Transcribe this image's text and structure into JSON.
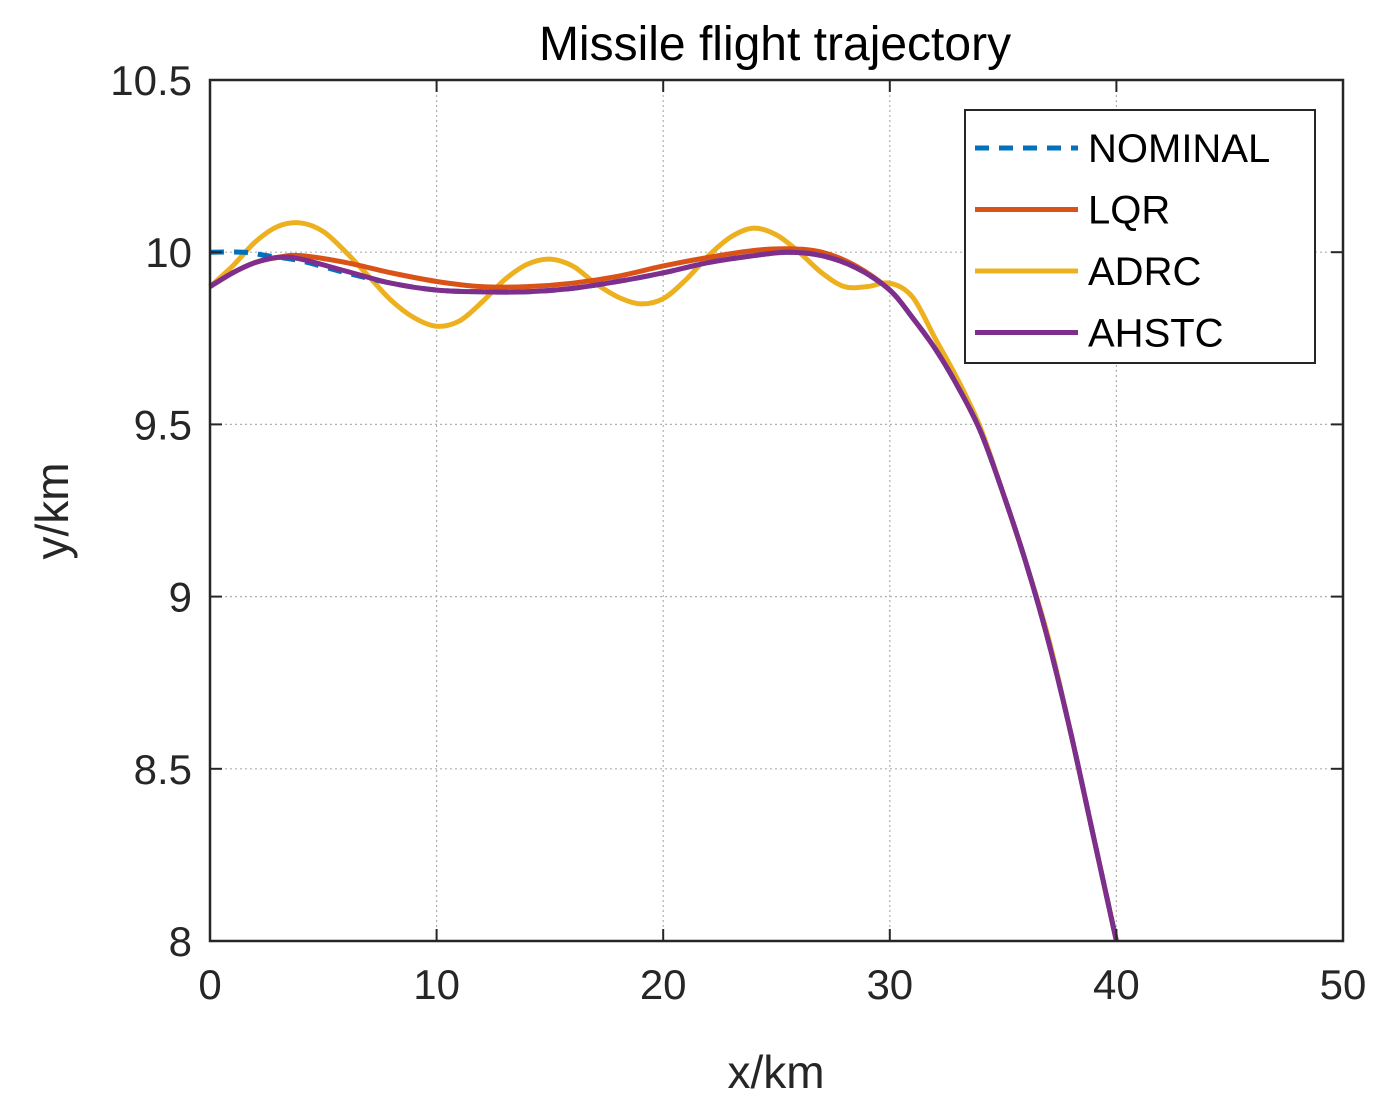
{
  "chart_data": {
    "type": "line",
    "title": "Missile flight trajectory",
    "xlabel": "x/km",
    "ylabel": "y/km",
    "xlim": [
      0,
      50
    ],
    "ylim": [
      8,
      10.5
    ],
    "xticks": [
      0,
      10,
      20,
      30,
      40,
      50
    ],
    "yticks": [
      8,
      8.5,
      9,
      9.5,
      10,
      10.5
    ],
    "xtick_labels": [
      "0",
      "10",
      "20",
      "30",
      "40",
      "50"
    ],
    "ytick_labels": [
      "8",
      "8.5",
      "9",
      "9.5",
      "10",
      "10.5"
    ],
    "grid": true,
    "legend_position": "top-right",
    "series": [
      {
        "name": "NOMINAL",
        "color": "#0072BD",
        "style": "dashed",
        "x": [
          0,
          1.5,
          2.5,
          4,
          6,
          8,
          10,
          12,
          14,
          16,
          18,
          20,
          22,
          24,
          25.5,
          27,
          28.5,
          30,
          31,
          32,
          33,
          34,
          35,
          36,
          37,
          38,
          39,
          40
        ],
        "y": [
          10.0,
          10.0,
          9.99,
          9.975,
          9.94,
          9.91,
          9.89,
          9.885,
          9.885,
          9.895,
          9.915,
          9.94,
          9.97,
          9.99,
          10.0,
          9.99,
          9.955,
          9.89,
          9.81,
          9.72,
          9.61,
          9.48,
          9.3,
          9.1,
          8.87,
          8.6,
          8.3,
          8.0
        ]
      },
      {
        "name": "LQR",
        "color": "#D95319",
        "style": "solid",
        "x": [
          0,
          1,
          2,
          3,
          4,
          6,
          8,
          10,
          12,
          14,
          16,
          18,
          20,
          22,
          24,
          25.5,
          27,
          28.5,
          30,
          31,
          32,
          33,
          34,
          35,
          36,
          37,
          38,
          39,
          40
        ],
        "y": [
          9.9,
          9.94,
          9.97,
          9.985,
          9.99,
          9.97,
          9.94,
          9.915,
          9.9,
          9.9,
          9.91,
          9.93,
          9.96,
          9.985,
          10.005,
          10.01,
          10.0,
          9.96,
          9.89,
          9.81,
          9.72,
          9.61,
          9.48,
          9.3,
          9.1,
          8.87,
          8.6,
          8.3,
          8.0
        ]
      },
      {
        "name": "ADRC",
        "color": "#EDB120",
        "style": "solid",
        "x": [
          0,
          1,
          2,
          3,
          4,
          5,
          6,
          7,
          8,
          9,
          10,
          11,
          12,
          13,
          14,
          15,
          16,
          17,
          18,
          19,
          20,
          21,
          22,
          23,
          24,
          25,
          26,
          27,
          28,
          29,
          30,
          31,
          32,
          33,
          34,
          35,
          36,
          37,
          38,
          39,
          40
        ],
        "y": [
          9.9,
          9.96,
          10.03,
          10.075,
          10.085,
          10.06,
          10.0,
          9.93,
          9.86,
          9.81,
          9.785,
          9.8,
          9.855,
          9.92,
          9.965,
          9.98,
          9.96,
          9.91,
          9.87,
          9.85,
          9.865,
          9.92,
          9.99,
          10.045,
          10.07,
          10.05,
          10.0,
          9.94,
          9.9,
          9.9,
          9.91,
          9.87,
          9.75,
          9.63,
          9.49,
          9.3,
          9.1,
          8.88,
          8.6,
          8.3,
          8.0
        ]
      },
      {
        "name": "AHSTC",
        "color": "#7E2F8E",
        "style": "solid",
        "x": [
          0,
          1,
          2,
          3,
          4,
          6,
          8,
          10,
          12,
          14,
          16,
          18,
          20,
          22,
          24,
          25.5,
          27,
          28.5,
          30,
          31,
          32,
          33,
          34,
          35,
          36,
          37,
          38,
          39,
          40
        ],
        "y": [
          9.9,
          9.94,
          9.97,
          9.985,
          9.98,
          9.945,
          9.91,
          9.89,
          9.885,
          9.885,
          9.895,
          9.915,
          9.94,
          9.97,
          9.99,
          10.0,
          9.99,
          9.955,
          9.89,
          9.81,
          9.72,
          9.61,
          9.48,
          9.3,
          9.1,
          8.87,
          8.6,
          8.3,
          8.0
        ]
      }
    ]
  }
}
